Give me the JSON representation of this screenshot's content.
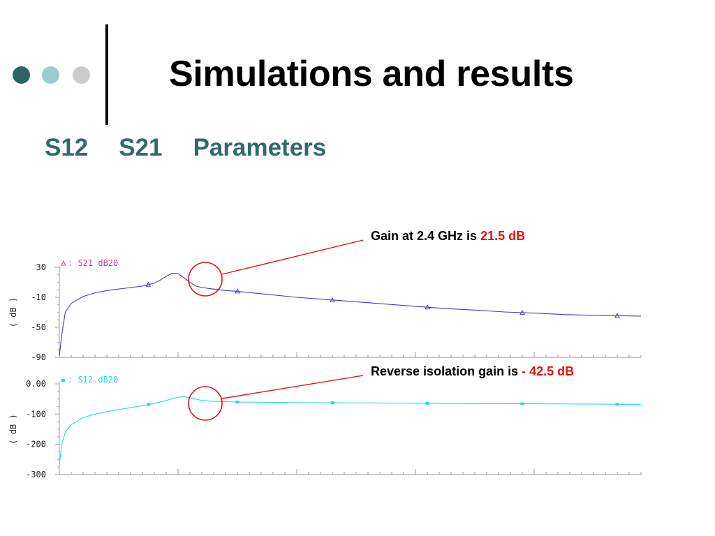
{
  "slide": {
    "title": "Simulations and results",
    "subtitle_parts": [
      "S12",
      "S21",
      "Parameters"
    ],
    "decoration_colors": [
      "#2f6465",
      "#99cccc",
      "#cccccc"
    ]
  },
  "callouts": [
    {
      "text": "Gain at 2.4 GHz is ",
      "value": "21.5 dB"
    },
    {
      "text": "Reverse isolation gain is ",
      "value": "- 42.5 dB"
    }
  ],
  "chart_data": [
    {
      "type": "line",
      "legend": "S21 dB20",
      "legend_marker": "triangle",
      "color": "#3b3bd6",
      "ylabel": "( dB )",
      "yticks": [
        "30",
        "-10",
        "-50",
        "-90"
      ],
      "ylim": [
        -90,
        30
      ],
      "series": [
        {
          "name": "S21 dB20",
          "x": [
            0.0,
            0.02,
            0.05,
            0.1,
            0.2,
            0.3,
            0.4,
            0.5,
            0.6,
            0.7,
            0.8,
            0.85,
            0.9,
            0.95,
            1.0,
            1.05,
            1.1,
            1.15,
            1.2,
            1.3,
            1.4,
            1.5,
            1.75,
            2.0,
            2.25,
            2.5,
            2.75,
            3.0,
            3.25,
            3.5,
            3.75,
            4.0,
            4.25,
            4.5,
            4.9
          ],
          "y": [
            -88,
            -60,
            -30,
            -18,
            -9,
            -4,
            -1,
            1,
            3,
            5,
            9,
            13,
            18,
            22,
            21.5,
            16,
            10,
            5,
            3,
            1,
            -1,
            -2,
            -6,
            -10,
            -13,
            -16,
            -19,
            -22,
            -25,
            -27,
            -29.5,
            -31,
            -33,
            -34,
            -35
          ]
        }
      ]
    },
    {
      "type": "line",
      "legend": "S12 dB20",
      "legend_marker": "square",
      "color": "#22d9e6",
      "ylabel": "( dB )",
      "yticks": [
        "0.00",
        "-100",
        "-200",
        "-300"
      ],
      "ylim": [
        -300,
        0
      ],
      "series": [
        {
          "name": "S12 dB20",
          "x": [
            0.0,
            0.02,
            0.05,
            0.1,
            0.2,
            0.3,
            0.4,
            0.5,
            0.6,
            0.7,
            0.8,
            0.9,
            1.0,
            1.05,
            1.1,
            1.2,
            1.3,
            1.5,
            2.0,
            2.5,
            3.0,
            3.5,
            4.0,
            4.5,
            4.9
          ],
          "y": [
            -268,
            -200,
            -160,
            -135,
            -112,
            -100,
            -92,
            -85,
            -79,
            -72,
            -65,
            -55,
            -44,
            -42.5,
            -46,
            -55,
            -58,
            -60,
            -62,
            -63,
            -64,
            -65,
            -66,
            -67,
            -68
          ]
        }
      ]
    }
  ]
}
